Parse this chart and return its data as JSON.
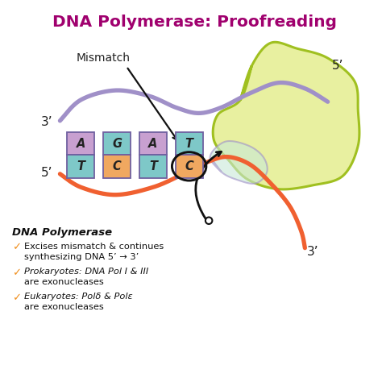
{
  "title": "DNA Polymerase: Proofreading",
  "title_color": "#a0006e",
  "title_fontsize": 14.5,
  "bg_color": "#ffffff",
  "bases_top": [
    "A",
    "G",
    "A",
    "T"
  ],
  "bases_bottom": [
    "T",
    "C",
    "T",
    "C"
  ],
  "base_colors_top": [
    "#c8a0d0",
    "#7ec8c8",
    "#c8a0d0",
    "#7ec8c8"
  ],
  "base_colors_bottom": [
    "#7ec8c8",
    "#f0a860",
    "#7ec8c8",
    "#f0a860"
  ],
  "mismatch_label": "Mismatch",
  "label_3prime_top": "3’",
  "label_5prime_bottom": "5’",
  "label_5prime_top_right": "5’",
  "label_3prime_bottom_right": "3’",
  "strand_top_color": "#a090c8",
  "strand_bottom_color": "#f06030",
  "enzyme_fill": "#e8f0a0",
  "enzyme_outline": "#a0c020",
  "enzyme_fill2": "#c8e8d8",
  "enzyme_outline2": "#a090c8",
  "bullet_color": "#f09020",
  "text_dna_pol": "DNA Polymerase",
  "bullet1": "✓",
  "line1a": "Excises mismatch & continues",
  "line1b": "synthesizing DNA 5’ → 3’",
  "line2a": "Prokaryotes: DNA Pol I & III",
  "line2b": "are exonucleases",
  "line3a": "Eukaryotes: Polδ & Polε",
  "line3b": "are exonucleases"
}
